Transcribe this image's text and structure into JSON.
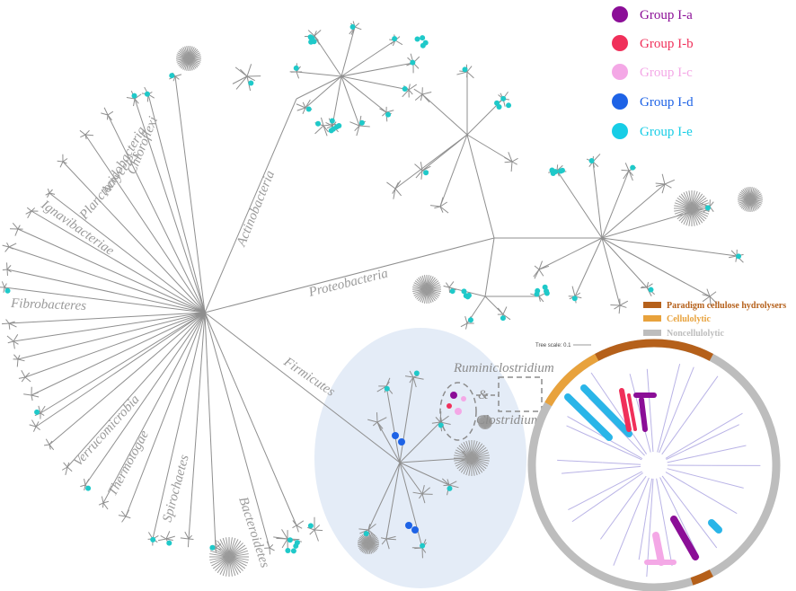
{
  "phyla": {
    "chloroflexi": "Chloroflexi",
    "acidobacteria": "Acidobacteria",
    "planctomycetes": "Planctomycetes",
    "ignavibacteriae": "Ignavibacteriae",
    "fibrobacteres": "Fibrobacteres",
    "verrucomicrobia": "Verrucomicrobia",
    "thermotogae": "Thermotogae",
    "spirochaetes": "Spirochaetes",
    "bacteroidetes": "Bacteroidetes",
    "firmicutes": "Firmicutes",
    "actinobacteria": "Actinobacteria",
    "proteobacteria": "Proteobacteria"
  },
  "genera": {
    "ruminiclostridium": "Ruminiclostridium",
    "ampersand": "&",
    "clostridium": "Clostridium"
  },
  "group_legend": [
    {
      "label": "Group I-a",
      "color": "#8b0e97"
    },
    {
      "label": "Group I-b",
      "color": "#f0305a"
    },
    {
      "label": "Group I-c",
      "color": "#f4a8e6"
    },
    {
      "label": "Group I-d",
      "color": "#1e63e6"
    },
    {
      "label": "Group I-e",
      "color": "#17cde6"
    }
  ],
  "category_legend": [
    {
      "label": "Paradigm cellulose hydrolysers",
      "color": "#b5601a"
    },
    {
      "label": "Cellulolytic",
      "color": "#e8a23c"
    },
    {
      "label": "Noncellulolytic",
      "color": "#bdbdbd"
    }
  ],
  "tree_scale": "Tree scale: 0.1",
  "colors": {
    "branch": "#8f8f8f",
    "marker": "#1fc9c9",
    "highlight_fill": "#dce8f6",
    "inner_branch": "#b9b3e6"
  }
}
